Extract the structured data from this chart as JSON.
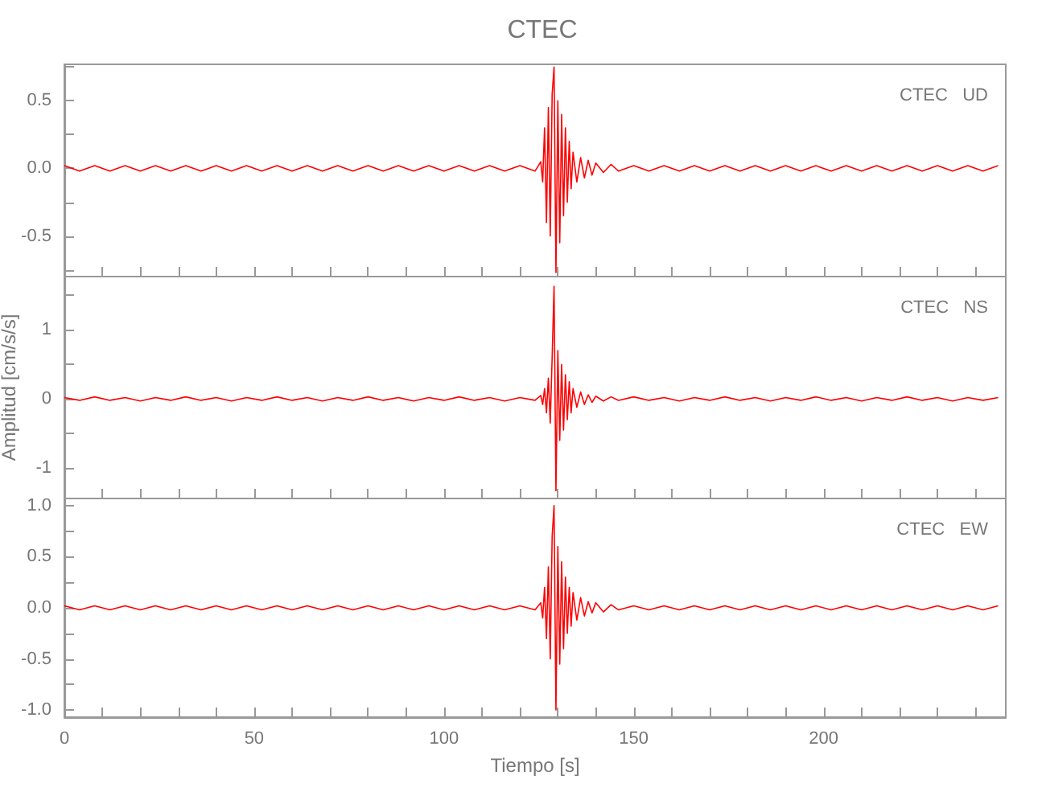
{
  "chart_data": [
    {
      "type": "line",
      "title": "CTEC",
      "annotations": [
        "CTEC   UD"
      ],
      "tick_labels": "y",
      "marker": "none",
      "x": [
        0,
        4,
        8,
        12,
        16,
        20,
        24,
        28,
        32,
        36,
        40,
        44,
        48,
        52,
        56,
        60,
        64,
        68,
        72,
        76,
        80,
        84,
        88,
        92,
        96,
        100,
        104,
        108,
        112,
        116,
        120,
        124,
        125.5,
        126,
        126.5,
        127,
        127.5,
        128,
        128.5,
        129,
        129.5,
        130,
        130.5,
        131,
        131.5,
        132,
        132.5,
        133,
        133.5,
        134,
        135,
        136,
        137,
        138,
        139,
        140,
        142,
        144,
        146,
        150,
        154,
        158,
        162,
        166,
        170,
        174,
        178,
        182,
        186,
        190,
        194,
        198,
        202,
        206,
        210,
        214,
        218,
        222,
        226,
        230,
        234,
        238,
        242,
        246
      ],
      "series": [
        {
          "color": "#ff0000",
          "values": [
            0.02,
            -0.02,
            0.02,
            -0.02,
            0.02,
            -0.02,
            0.02,
            -0.02,
            0.02,
            -0.02,
            0.02,
            -0.02,
            0.02,
            -0.02,
            0.02,
            -0.02,
            0.02,
            -0.02,
            0.02,
            -0.02,
            0.02,
            -0.02,
            0.02,
            -0.02,
            0.02,
            -0.02,
            0.02,
            -0.02,
            0.02,
            -0.02,
            0.02,
            -0.02,
            0.05,
            -0.1,
            0.3,
            -0.4,
            0.45,
            -0.5,
            0.55,
            0.75,
            -0.77,
            0.5,
            -0.55,
            0.4,
            -0.35,
            0.3,
            -0.25,
            0.2,
            -0.15,
            0.12,
            -0.1,
            0.08,
            -0.07,
            0.06,
            -0.05,
            0.04,
            -0.03,
            0.03,
            -0.02,
            0.02,
            -0.02,
            0.02,
            -0.02,
            0.02,
            -0.02,
            0.02,
            -0.02,
            0.02,
            -0.02,
            0.02,
            -0.02,
            0.02,
            -0.02,
            0.02,
            -0.02,
            0.02,
            -0.02,
            0.02,
            -0.02,
            0.02,
            -0.02,
            0.02,
            -0.02,
            0.02
          ]
        }
      ],
      "xlim": [
        0,
        248
      ],
      "ylim": [
        -0.8,
        0.77
      ],
      "xticks": [
        0,
        {
          "value": 10,
          "label": null
        },
        {
          "value": 20,
          "label": null
        },
        {
          "value": 30,
          "label": null
        },
        {
          "value": 40,
          "label": null
        },
        50,
        {
          "value": 60,
          "label": null
        },
        {
          "value": 70,
          "label": null
        },
        {
          "value": 80,
          "label": null
        },
        {
          "value": 90,
          "label": null
        },
        100,
        {
          "value": 110,
          "label": null
        },
        {
          "value": 120,
          "label": null
        },
        {
          "value": 130,
          "label": null
        },
        {
          "value": 140,
          "label": null
        },
        150,
        {
          "value": 160,
          "label": null
        },
        {
          "value": 170,
          "label": null
        },
        {
          "value": 180,
          "label": null
        },
        {
          "value": 190,
          "label": null
        },
        200,
        {
          "value": 210,
          "label": null
        },
        {
          "value": 220,
          "label": null
        },
        {
          "value": 230,
          "label": null
        },
        {
          "value": 240,
          "label": null
        }
      ],
      "yticks": [
        {
          "value": -0.75,
          "label": null
        },
        -0.5,
        {
          "value": -0.25,
          "label": null
        },
        {
          "value": 0,
          "label": "0.0"
        },
        {
          "value": 0.25,
          "label": null
        },
        0.5,
        {
          "value": 0.75,
          "label": null
        }
      ]
    },
    {
      "type": "line",
      "ylabel": "Amplitud [cm/s/s]",
      "annotations": [
        "CTEC   NS"
      ],
      "tick_labels": "y",
      "marker": "none",
      "x": [
        0,
        4,
        8,
        12,
        16,
        20,
        24,
        28,
        32,
        36,
        40,
        44,
        48,
        52,
        56,
        60,
        64,
        68,
        72,
        76,
        80,
        84,
        88,
        92,
        96,
        100,
        104,
        108,
        112,
        116,
        120,
        124,
        125.5,
        126,
        126.5,
        127,
        127.5,
        128,
        128.5,
        129,
        129.5,
        130,
        130.5,
        131,
        131.5,
        132,
        132.5,
        133,
        133.5,
        134,
        135,
        136,
        137,
        138,
        139,
        140,
        142,
        144,
        146,
        150,
        154,
        158,
        162,
        166,
        170,
        174,
        178,
        182,
        186,
        190,
        194,
        198,
        202,
        206,
        210,
        214,
        218,
        222,
        226,
        230,
        234,
        238,
        242,
        246
      ],
      "series": [
        {
          "color": "#ff0000",
          "values": [
            0.02,
            -0.02,
            0.03,
            -0.02,
            0.02,
            -0.03,
            0.02,
            -0.02,
            0.03,
            -0.02,
            0.02,
            -0.03,
            0.02,
            -0.02,
            0.03,
            -0.02,
            0.02,
            -0.03,
            0.02,
            -0.02,
            0.03,
            -0.02,
            0.02,
            -0.03,
            0.02,
            -0.02,
            0.03,
            -0.02,
            0.02,
            -0.03,
            0.02,
            -0.02,
            0.05,
            -0.08,
            0.15,
            -0.2,
            0.3,
            -0.35,
            0.6,
            1.63,
            -1.33,
            0.7,
            -0.6,
            0.5,
            -0.45,
            0.35,
            -0.3,
            0.25,
            -0.2,
            0.15,
            -0.12,
            0.1,
            -0.08,
            0.06,
            -0.05,
            0.04,
            -0.03,
            0.03,
            -0.02,
            0.03,
            -0.02,
            0.02,
            -0.03,
            0.02,
            -0.02,
            0.03,
            -0.02,
            0.02,
            -0.03,
            0.02,
            -0.02,
            0.03,
            -0.02,
            0.02,
            -0.03,
            0.02,
            -0.02,
            0.03,
            -0.02,
            0.02,
            -0.03,
            0.02,
            -0.02,
            0.02
          ]
        }
      ],
      "xlim": [
        0,
        248
      ],
      "ylim": [
        -1.44,
        1.77
      ],
      "xticks": [
        0,
        {
          "value": 10,
          "label": null
        },
        {
          "value": 20,
          "label": null
        },
        {
          "value": 30,
          "label": null
        },
        {
          "value": 40,
          "label": null
        },
        50,
        {
          "value": 60,
          "label": null
        },
        {
          "value": 70,
          "label": null
        },
        {
          "value": 80,
          "label": null
        },
        {
          "value": 90,
          "label": null
        },
        100,
        {
          "value": 110,
          "label": null
        },
        {
          "value": 120,
          "label": null
        },
        {
          "value": 130,
          "label": null
        },
        {
          "value": 140,
          "label": null
        },
        150,
        {
          "value": 160,
          "label": null
        },
        {
          "value": 170,
          "label": null
        },
        {
          "value": 180,
          "label": null
        },
        {
          "value": 190,
          "label": null
        },
        200,
        {
          "value": 210,
          "label": null
        },
        {
          "value": 220,
          "label": null
        },
        {
          "value": 230,
          "label": null
        },
        {
          "value": 240,
          "label": null
        }
      ],
      "yticks": [
        -1,
        {
          "value": -0.5,
          "label": null
        },
        0,
        {
          "value": 0.5,
          "label": null
        },
        1,
        {
          "value": 1.5,
          "label": null
        }
      ]
    },
    {
      "type": "line",
      "xlabel": "Tiempo [s]",
      "annotations": [
        "CTEC   EW"
      ],
      "marker": "none",
      "x": [
        0,
        4,
        8,
        12,
        16,
        20,
        24,
        28,
        32,
        36,
        40,
        44,
        48,
        52,
        56,
        60,
        64,
        68,
        72,
        76,
        80,
        84,
        88,
        92,
        96,
        100,
        104,
        108,
        112,
        116,
        120,
        124,
        125.5,
        126,
        126.5,
        127,
        127.5,
        128,
        128.5,
        129,
        129.5,
        130,
        130.5,
        131,
        131.5,
        132,
        132.5,
        133,
        133.5,
        134,
        135,
        136,
        137,
        138,
        139,
        140,
        142,
        144,
        146,
        150,
        154,
        158,
        162,
        166,
        170,
        174,
        178,
        182,
        186,
        190,
        194,
        198,
        202,
        206,
        210,
        214,
        218,
        222,
        226,
        230,
        234,
        238,
        242,
        246
      ],
      "series": [
        {
          "color": "#ff0000",
          "values": [
            0.02,
            -0.02,
            0.02,
            -0.02,
            0.02,
            -0.02,
            0.02,
            -0.02,
            0.02,
            -0.02,
            0.02,
            -0.02,
            0.02,
            -0.02,
            0.02,
            -0.02,
            0.02,
            -0.02,
            0.02,
            -0.02,
            0.02,
            -0.02,
            0.02,
            -0.02,
            0.02,
            -0.02,
            0.02,
            -0.02,
            0.02,
            -0.02,
            0.02,
            -0.02,
            0.05,
            -0.1,
            0.2,
            -0.3,
            0.4,
            -0.5,
            0.7,
            1.0,
            -1.0,
            0.6,
            -0.55,
            0.45,
            -0.4,
            0.3,
            -0.25,
            0.2,
            -0.18,
            0.15,
            -0.12,
            0.1,
            -0.08,
            0.06,
            -0.05,
            0.05,
            -0.04,
            0.03,
            -0.02,
            0.02,
            -0.02,
            0.02,
            -0.02,
            0.02,
            -0.02,
            0.02,
            -0.02,
            0.02,
            -0.02,
            0.02,
            -0.02,
            0.02,
            -0.02,
            0.02,
            -0.02,
            0.02,
            -0.02,
            0.02,
            -0.02,
            0.02,
            -0.02,
            0.02,
            -0.02,
            0.02
          ]
        }
      ],
      "xlim": [
        0,
        248
      ],
      "ylim": [
        -1.07,
        1.07
      ],
      "xticks": [
        0,
        {
          "value": 10,
          "label": null
        },
        {
          "value": 20,
          "label": null
        },
        {
          "value": 30,
          "label": null
        },
        {
          "value": 40,
          "label": null
        },
        50,
        {
          "value": 60,
          "label": null
        },
        {
          "value": 70,
          "label": null
        },
        {
          "value": 80,
          "label": null
        },
        {
          "value": 90,
          "label": null
        },
        100,
        {
          "value": 110,
          "label": null
        },
        {
          "value": 120,
          "label": null
        },
        {
          "value": 130,
          "label": null
        },
        {
          "value": 140,
          "label": null
        },
        150,
        {
          "value": 160,
          "label": null
        },
        {
          "value": 170,
          "label": null
        },
        {
          "value": 180,
          "label": null
        },
        {
          "value": 190,
          "label": null
        },
        200,
        {
          "value": 210,
          "label": null
        },
        {
          "value": 220,
          "label": null
        },
        {
          "value": 230,
          "label": null
        },
        {
          "value": 240,
          "label": null
        }
      ],
      "yticks": [
        {
          "value": -1,
          "label": "-1.0"
        },
        {
          "value": -0.75,
          "label": null
        },
        -0.5,
        {
          "value": -0.25,
          "label": null
        },
        {
          "value": 0,
          "label": "0.0"
        },
        {
          "value": 0.25,
          "label": null
        },
        0.5,
        {
          "value": 0.75,
          "label": null
        },
        {
          "value": 1,
          "label": "1.0"
        }
      ]
    }
  ]
}
